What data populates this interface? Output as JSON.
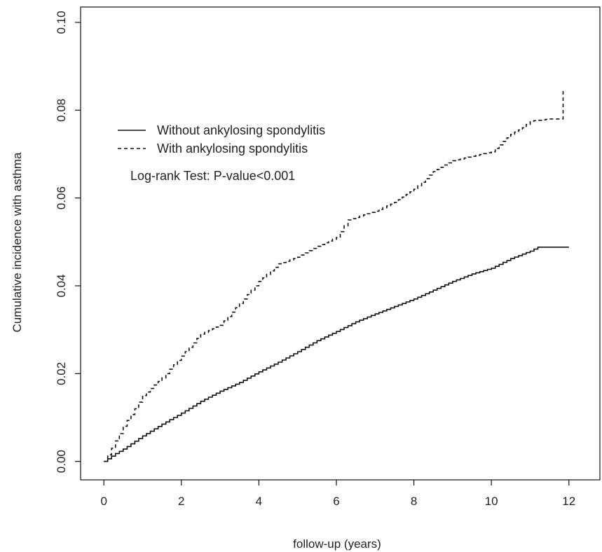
{
  "chart_data": {
    "type": "line",
    "title": "",
    "xlabel": "follow-up (years)",
    "ylabel": "Cumulative incidence with asthma",
    "xlim": [
      -0.6,
      12.8
    ],
    "ylim": [
      -0.0042,
      0.1035
    ],
    "xticks": [
      0,
      2,
      4,
      6,
      8,
      10,
      12
    ],
    "yticks": [
      0.0,
      0.02,
      0.04,
      0.06,
      0.08,
      0.1
    ],
    "xtick_labels": [
      "0",
      "2",
      "4",
      "6",
      "8",
      "10",
      "12"
    ],
    "ytick_labels": [
      "0.00",
      "0.02",
      "0.04",
      "0.06",
      "0.08",
      "0.10"
    ],
    "grid": false,
    "legend_position": "top-left",
    "annotation": "Log-rank Test: P-value<0.001",
    "series": [
      {
        "name": "Without ankylosing spondylitis",
        "line_style": "solid",
        "color": "#111111",
        "points": [
          [
            0,
            0.0
          ],
          [
            0.3,
            0.0018
          ],
          [
            0.5,
            0.0028
          ],
          [
            1.0,
            0.0058
          ],
          [
            1.5,
            0.0085
          ],
          [
            2.0,
            0.011
          ],
          [
            2.5,
            0.0137
          ],
          [
            3.0,
            0.016
          ],
          [
            3.5,
            0.018
          ],
          [
            4.0,
            0.0204
          ],
          [
            4.5,
            0.0226
          ],
          [
            5.0,
            0.025
          ],
          [
            5.5,
            0.0275
          ],
          [
            6.0,
            0.0296
          ],
          [
            6.5,
            0.0318
          ],
          [
            7.0,
            0.0336
          ],
          [
            7.5,
            0.0353
          ],
          [
            8.0,
            0.037
          ],
          [
            8.5,
            0.039
          ],
          [
            9.0,
            0.041
          ],
          [
            9.5,
            0.0427
          ],
          [
            10.0,
            0.044
          ],
          [
            10.5,
            0.0462
          ],
          [
            11.0,
            0.0479
          ],
          [
            11.2,
            0.0488
          ],
          [
            12.0,
            0.0488
          ]
        ]
      },
      {
        "name": "With ankylosing spondylitis",
        "line_style": "dashed",
        "color": "#111111",
        "points": [
          [
            0,
            0.0
          ],
          [
            0.2,
            0.003
          ],
          [
            0.5,
            0.008
          ],
          [
            0.8,
            0.012
          ],
          [
            1.0,
            0.015
          ],
          [
            1.5,
            0.019
          ],
          [
            2.0,
            0.024
          ],
          [
            2.5,
            0.029
          ],
          [
            3.0,
            0.031
          ],
          [
            3.5,
            0.036
          ],
          [
            4.0,
            0.041
          ],
          [
            4.5,
            0.045
          ],
          [
            5.0,
            0.0465
          ],
          [
            5.5,
            0.049
          ],
          [
            6.0,
            0.051
          ],
          [
            6.3,
            0.055
          ],
          [
            7.0,
            0.057
          ],
          [
            7.5,
            0.059
          ],
          [
            8.0,
            0.062
          ],
          [
            8.5,
            0.066
          ],
          [
            9.0,
            0.0685
          ],
          [
            9.5,
            0.0695
          ],
          [
            10.0,
            0.0705
          ],
          [
            10.5,
            0.0745
          ],
          [
            10.8,
            0.076
          ],
          [
            11.0,
            0.0775
          ],
          [
            11.5,
            0.078
          ],
          [
            11.8,
            0.078
          ],
          [
            11.85,
            0.0845
          ]
        ]
      }
    ]
  }
}
